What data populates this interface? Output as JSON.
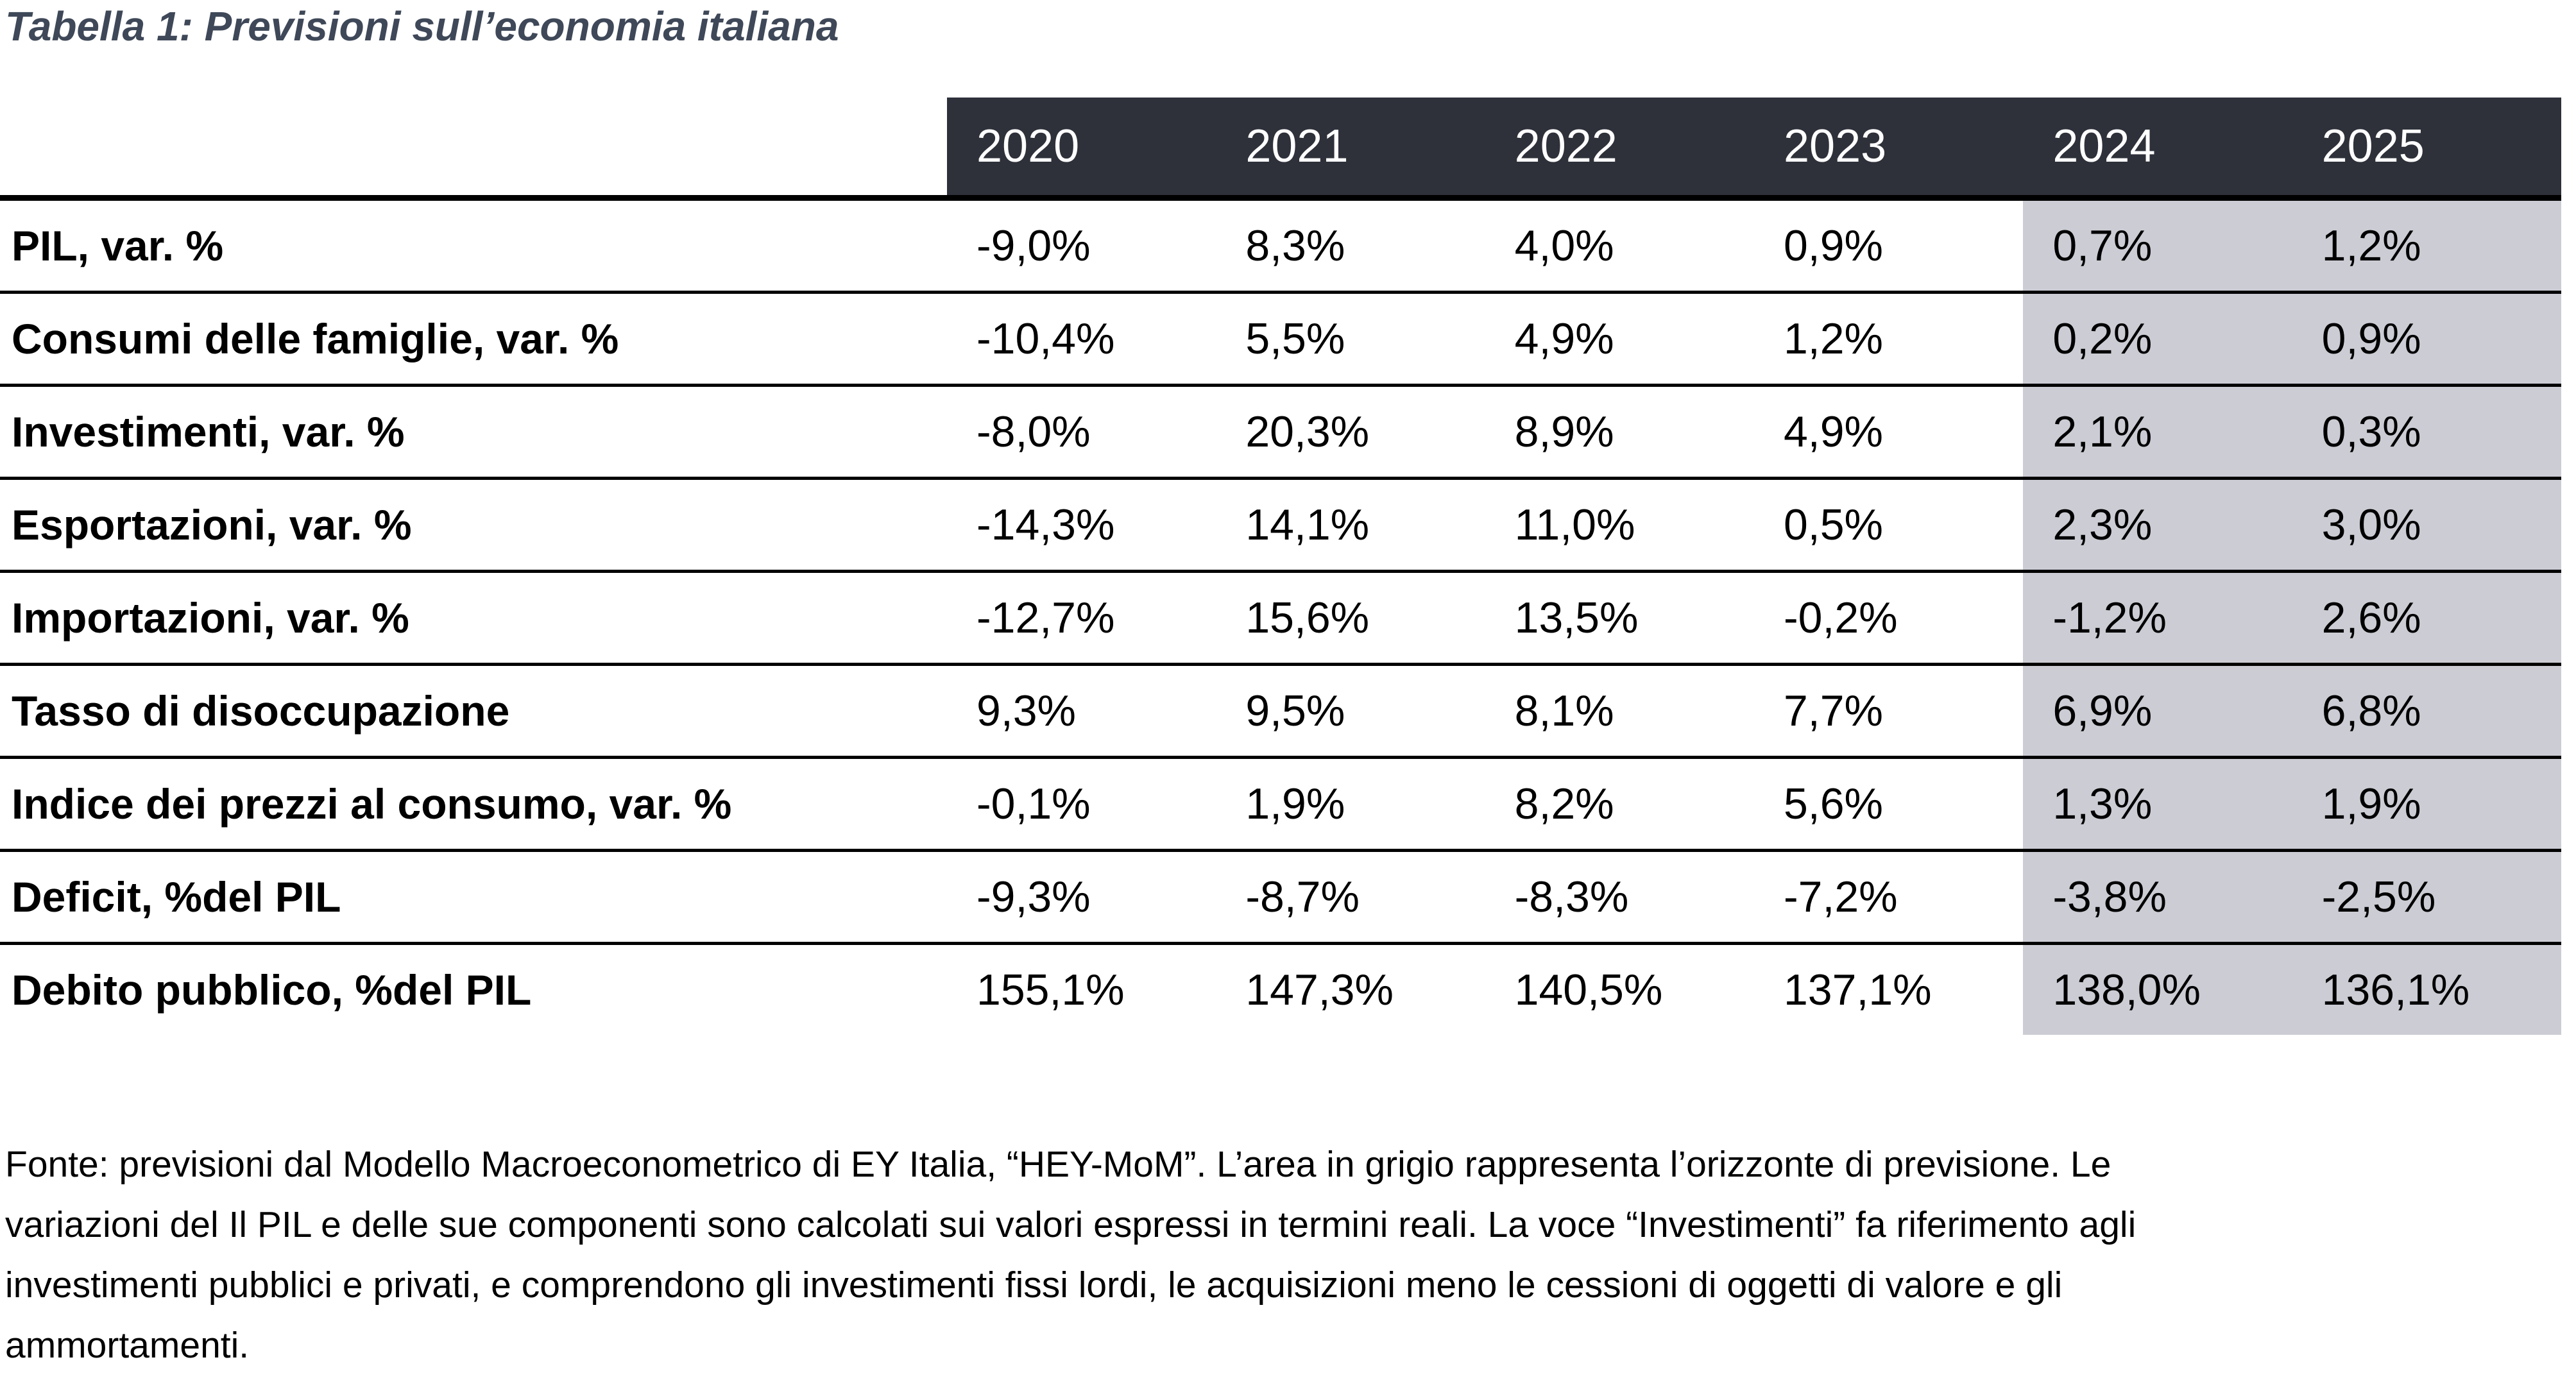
{
  "title": "Tabella 1: Previsioni sull’economia italiana",
  "table": {
    "years": [
      "2020",
      "2021",
      "2022",
      "2023",
      "2024",
      "2025"
    ],
    "forecast_years": [
      "2024",
      "2025"
    ],
    "rows": [
      {
        "label": "PIL, var. %",
        "values": [
          "-9,0%",
          "8,3%",
          "4,0%",
          "0,9%",
          "0,7%",
          "1,2%"
        ]
      },
      {
        "label": "Consumi delle famiglie, var. %",
        "values": [
          "-10,4%",
          "5,5%",
          "4,9%",
          "1,2%",
          "0,2%",
          "0,9%"
        ]
      },
      {
        "label": "Investimenti, var. %",
        "values": [
          "-8,0%",
          "20,3%",
          "8,9%",
          "4,9%",
          "2,1%",
          "0,3%"
        ]
      },
      {
        "label": "Esportazioni, var. %",
        "values": [
          "-14,3%",
          "14,1%",
          "11,0%",
          "0,5%",
          "2,3%",
          "3,0%"
        ]
      },
      {
        "label": "Importazioni, var. %",
        "values": [
          "-12,7%",
          "15,6%",
          "13,5%",
          "-0,2%",
          "-1,2%",
          "2,6%"
        ]
      },
      {
        "label": "Tasso di disoccupazione",
        "values": [
          "9,3%",
          "9,5%",
          "8,1%",
          "7,7%",
          "6,9%",
          "6,8%"
        ]
      },
      {
        "label": "Indice dei prezzi al consumo, var. %",
        "values": [
          "-0,1%",
          "1,9%",
          "8,2%",
          "5,6%",
          "1,3%",
          "1,9%"
        ]
      },
      {
        "label": "Deficit, %del PIL",
        "values": [
          "-9,3%",
          "-8,7%",
          "-8,3%",
          "-7,2%",
          "-3,8%",
          "-2,5%"
        ]
      },
      {
        "label": "Debito pubblico, %del PIL",
        "values": [
          "155,1%",
          "147,3%",
          "140,5%",
          "137,1%",
          "138,0%",
          "136,1%"
        ]
      }
    ]
  },
  "footnote_lines": [
    "Fonte: previsioni dal Modello Macroeconometrico di EY Italia, “HEY-MoM”. L’area in grigio rappresenta l’orizzonte di previsione. Le",
    "variazioni del Il PIL e delle sue componenti sono calcolati sui valori espressi in termini reali. La voce “Investimenti” fa riferimento agli",
    "investimenti pubblici e privati, e comprendono gli investimenti fissi lordi, le acquisizioni meno le cessioni di oggetti di valore e gli",
    "ammortamenti."
  ],
  "colors": {
    "header_bg": "#2e313a",
    "header_text": "#ffffff",
    "forecast_bg": "#cbccd4",
    "title_color": "#3e4858",
    "rule_color": "#000000"
  }
}
